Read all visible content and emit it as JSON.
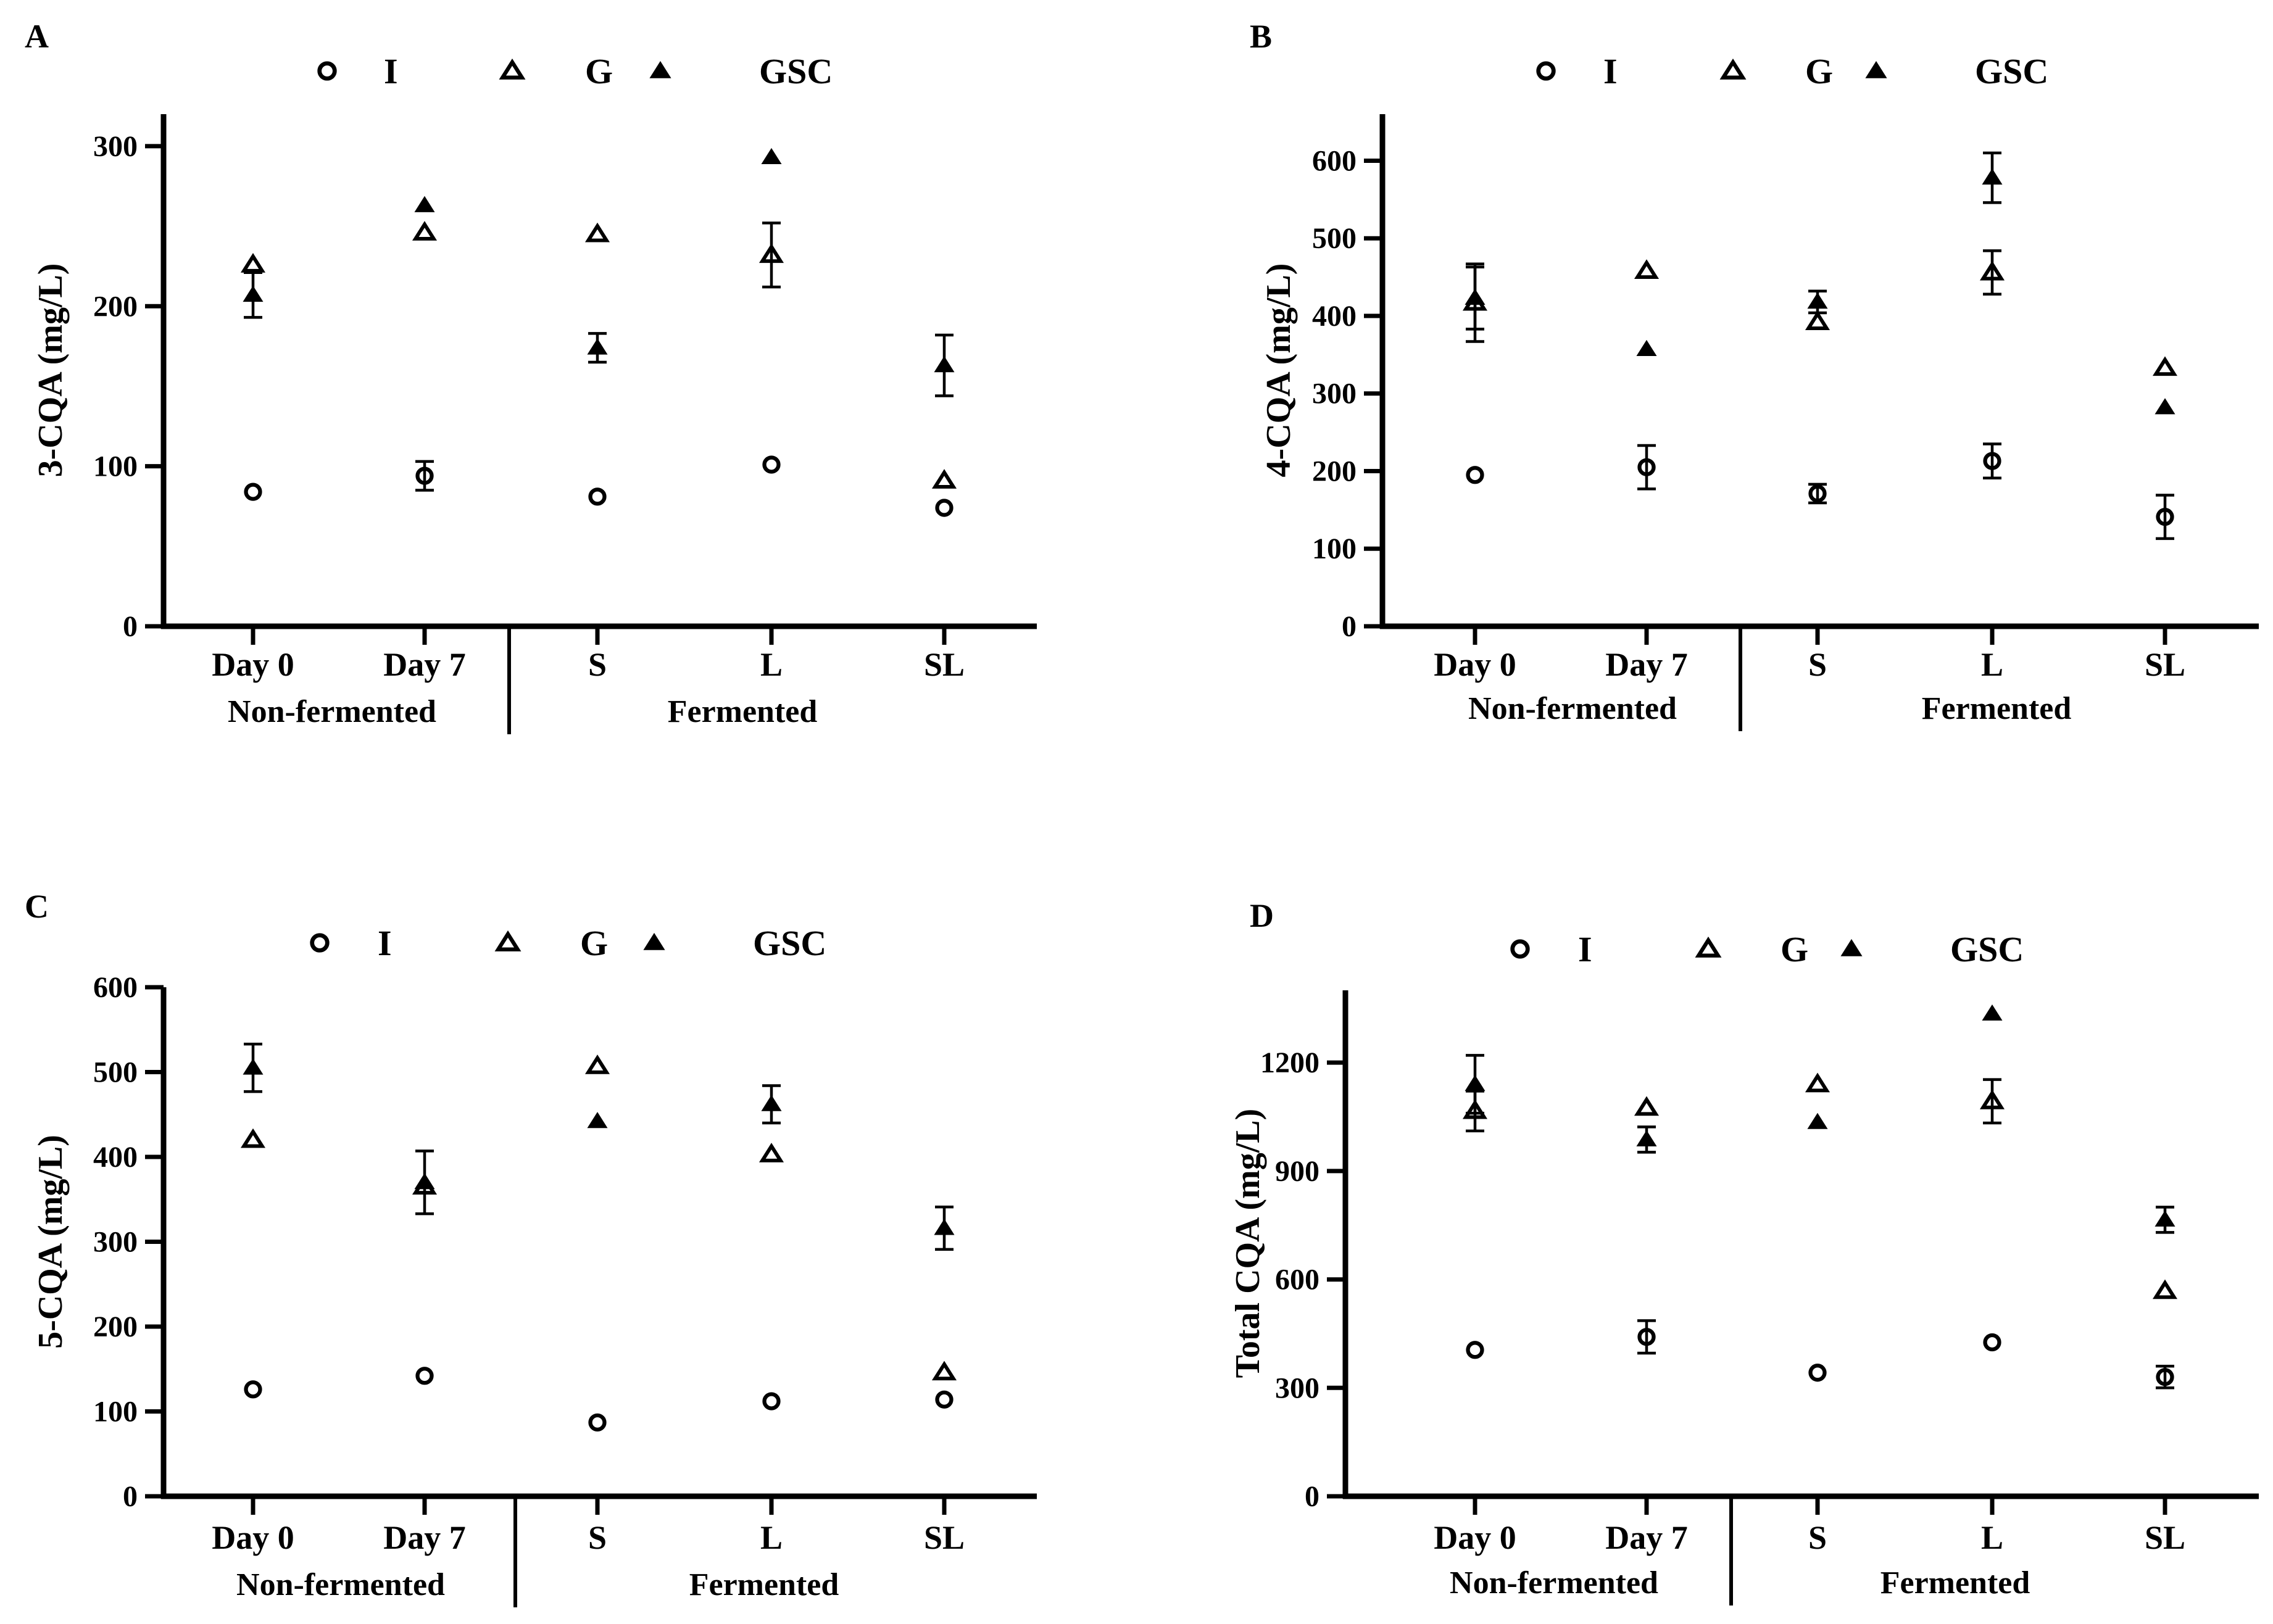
{
  "figure": {
    "series": [
      {
        "key": "I",
        "name": "I",
        "marker": "open-circle"
      },
      {
        "key": "G",
        "name": "G",
        "marker": "open-triangle"
      },
      {
        "key": "GSC",
        "name": "GSC",
        "marker": "filled-triangle"
      }
    ],
    "group_labels": [
      "Non-fermented",
      "Fermented"
    ]
  },
  "chart_data": [
    {
      "panel": "A",
      "type": "scatter",
      "ylabel": "3-CQA (mg/L)",
      "categories": [
        "Day 0",
        "Day 7",
        "S",
        "L",
        "SL"
      ],
      "groups": [
        {
          "label": "Non-fermented",
          "categories": [
            "Day 0",
            "Day 7"
          ]
        },
        {
          "label": "Fermented",
          "categories": [
            "S",
            "L",
            "SL"
          ]
        }
      ],
      "ylim": [
        0,
        320
      ],
      "yticks": [
        0,
        100,
        200,
        300
      ],
      "series": [
        {
          "name": "I",
          "values": [
            84,
            94,
            81,
            101,
            74
          ],
          "errors": [
            3,
            9,
            2,
            2,
            2
          ]
        },
        {
          "name": "G",
          "values": [
            226,
            246,
            245,
            232,
            91
          ],
          "errors": [
            3,
            5,
            3,
            20,
            2
          ]
        },
        {
          "name": "GSC",
          "values": [
            207,
            263,
            174,
            293,
            163
          ],
          "errors": [
            14,
            3,
            9,
            2,
            19
          ]
        }
      ]
    },
    {
      "panel": "B",
      "type": "scatter",
      "ylabel": "4-CQA (mg/L)",
      "categories": [
        "Day 0",
        "Day 7",
        "S",
        "L",
        "SL"
      ],
      "groups": [
        {
          "label": "Non-fermented",
          "categories": [
            "Day 0",
            "Day 7"
          ]
        },
        {
          "label": "Fermented",
          "categories": [
            "S",
            "L",
            "SL"
          ]
        }
      ],
      "ylim": [
        0,
        660
      ],
      "yticks": [
        0,
        100,
        200,
        300,
        400,
        500,
        600
      ],
      "series": [
        {
          "name": "I",
          "values": [
            195,
            205,
            171,
            213,
            141
          ],
          "errors": [
            3,
            28,
            12,
            22,
            28
          ]
        },
        {
          "name": "G",
          "values": [
            417,
            458,
            392,
            456,
            333
          ],
          "errors": [
            50,
            3,
            5,
            28,
            3
          ]
        },
        {
          "name": "GSC",
          "values": [
            423,
            357,
            418,
            578,
            282
          ],
          "errors": [
            40,
            3,
            14,
            32,
            3
          ]
        }
      ]
    },
    {
      "panel": "C",
      "type": "scatter",
      "ylabel": "5-CQA (mg/L)",
      "categories": [
        "Day 0",
        "Day 7",
        "S",
        "L",
        "SL"
      ],
      "groups": [
        {
          "label": "Non-fermented",
          "categories": [
            "Day 0",
            "Day 7"
          ]
        },
        {
          "label": "Fermented",
          "categories": [
            "S",
            "L",
            "SL"
          ]
        }
      ],
      "ylim": [
        0,
        600
      ],
      "yticks": [
        0,
        100,
        200,
        300,
        400,
        500,
        600
      ],
      "series": [
        {
          "name": "I",
          "values": [
            126,
            142,
            87,
            112,
            114
          ],
          "errors": [
            5,
            8,
            2,
            3,
            3
          ]
        },
        {
          "name": "G",
          "values": [
            420,
            365,
            507,
            403,
            146
          ],
          "errors": [
            8,
            3,
            3,
            8,
            3
          ]
        },
        {
          "name": "GSC",
          "values": [
            505,
            370,
            442,
            462,
            316
          ],
          "errors": [
            28,
            37,
            3,
            22,
            25
          ]
        }
      ]
    },
    {
      "panel": "D",
      "type": "scatter",
      "ylabel": "Total CQA (mg/L)",
      "categories": [
        "Day 0",
        "Day 7",
        "S",
        "L",
        "SL"
      ],
      "groups": [
        {
          "label": "Non-fermented",
          "categories": [
            "Day 0",
            "Day 7"
          ]
        },
        {
          "label": "Fermented",
          "categories": [
            "S",
            "L",
            "SL"
          ]
        }
      ],
      "ylim": [
        0,
        1400
      ],
      "yticks": [
        0,
        300,
        600,
        900,
        1200
      ],
      "series": [
        {
          "name": "I",
          "values": [
            405,
            441,
            342,
            426,
            330
          ],
          "errors": [
            5,
            45,
            5,
            5,
            30
          ]
        },
        {
          "name": "G",
          "values": [
            1066,
            1075,
            1140,
            1093,
            568
          ],
          "errors": [
            55,
            5,
            5,
            60,
            5
          ]
        },
        {
          "name": "GSC",
          "values": [
            1140,
            987,
            1035,
            1335,
            765
          ],
          "errors": [
            80,
            35,
            5,
            5,
            35
          ]
        }
      ]
    }
  ]
}
